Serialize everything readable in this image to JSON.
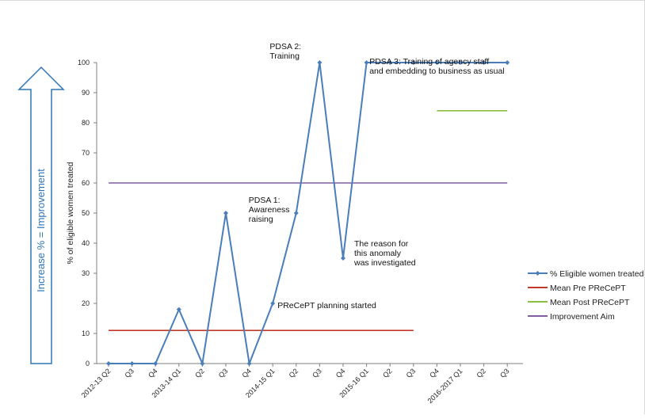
{
  "chart_data": {
    "type": "line",
    "title": "",
    "xlabel": "",
    "ylabel": "% of eligible women treated",
    "ylim": [
      0,
      100
    ],
    "yticks": [
      0,
      10,
      20,
      30,
      40,
      50,
      60,
      70,
      80,
      90,
      100
    ],
    "categories": [
      "2012-13 Q2",
      "Q3",
      "Q4",
      "2013-14 Q1",
      "Q2",
      "Q3",
      "Q4",
      "2014-15 Q1",
      "Q2",
      "Q3",
      "Q4",
      "2015-16 Q1",
      "Q2",
      "Q3",
      "Q4",
      "2016-2017 Q1",
      "Q2",
      "Q3"
    ],
    "series": [
      {
        "name": "% Eligible women treated",
        "color": "#4a7ebb",
        "style": "line-markers",
        "values": [
          0,
          0,
          0,
          18,
          0,
          50,
          0,
          20,
          50,
          100,
          35,
          100,
          100,
          100,
          100,
          100,
          100,
          100
        ]
      },
      {
        "name": "Mean Pre PReCePT",
        "color": "#c0392b",
        "style": "line",
        "values": [
          11,
          11,
          11,
          11,
          11,
          11,
          11,
          11,
          11,
          11,
          11,
          11,
          11,
          11,
          null,
          null,
          null,
          null
        ]
      },
      {
        "name": "Mean Post PReCePT",
        "color": "#8cbf3f",
        "style": "line",
        "values": [
          null,
          null,
          null,
          null,
          null,
          null,
          null,
          null,
          null,
          null,
          null,
          null,
          null,
          null,
          84,
          84,
          84,
          84
        ]
      },
      {
        "name": "Improvement Aim",
        "color": "#7f5ea3",
        "style": "line",
        "values": [
          60,
          60,
          60,
          60,
          60,
          60,
          60,
          60,
          60,
          60,
          60,
          60,
          60,
          60,
          60,
          60,
          60,
          60
        ]
      }
    ],
    "annotations": [
      {
        "lines": [
          "PDSA 2:",
          "Training"
        ],
        "x": "Q3",
        "y": 100
      },
      {
        "lines": [
          "PDSA 3: Training of agency staff",
          "and embedding to business as usual"
        ],
        "x": "Q2",
        "y": 100
      },
      {
        "lines": [
          "PDSA 1:",
          "Awareness",
          "raising"
        ],
        "x": "Q2",
        "y": 50
      },
      {
        "lines": [
          "The reason for",
          "this anomaly",
          "was investigated"
        ],
        "x": "Q4",
        "y": 35
      },
      {
        "lines": [
          "PReCePT planning started"
        ],
        "x": "2014-15 Q1",
        "y": 20
      }
    ],
    "side_arrow": {
      "label": "Increase % = Improvement",
      "color": "#2e75b6"
    },
    "legend_position": "right",
    "grid": false
  }
}
